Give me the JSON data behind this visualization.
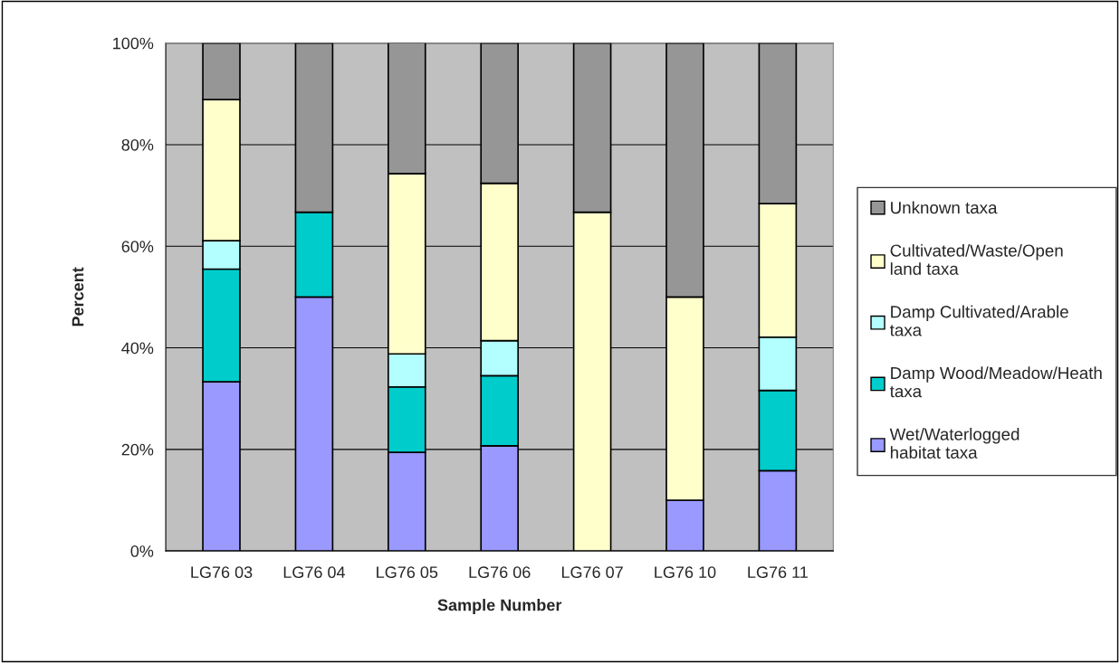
{
  "chart_data": {
    "type": "bar",
    "stacked": true,
    "xlabel": "Sample Number",
    "ylabel": "Percent",
    "categories": [
      "LG76 03",
      "LG76 04",
      "LG76 05",
      "LG76 06",
      "LG76 07",
      "LG76 10",
      "LG76 11"
    ],
    "series": [
      {
        "name": "Wet/Waterlogged habitat taxa",
        "color": "#9999ff",
        "values": [
          33.3,
          50.0,
          19.4,
          20.7,
          0,
          10.0,
          15.8
        ]
      },
      {
        "name": "Damp Wood/Meadow/Heath taxa",
        "color": "#00cccc",
        "values": [
          22.2,
          16.7,
          12.9,
          13.8,
          0,
          0,
          15.8
        ]
      },
      {
        "name": "Damp Cultivated/Arable taxa",
        "color": "#b3ffff",
        "values": [
          5.6,
          0,
          6.5,
          6.9,
          0,
          0,
          10.5
        ]
      },
      {
        "name": "Cultivated/Waste/Open land taxa",
        "color": "#ffffcc",
        "values": [
          27.8,
          0,
          35.5,
          31.0,
          66.7,
          40.0,
          26.3
        ]
      },
      {
        "name": "Unknown taxa",
        "color": "#969696",
        "values": [
          11.1,
          33.3,
          25.8,
          27.6,
          33.3,
          50.0,
          31.6
        ]
      }
    ],
    "ylim": [
      0,
      100
    ],
    "yticks": [
      {
        "value": 0,
        "label": "0%"
      },
      {
        "value": 20,
        "label": "20%"
      },
      {
        "value": 40,
        "label": "40%"
      },
      {
        "value": 60,
        "label": "60%"
      },
      {
        "value": 80,
        "label": "80%"
      },
      {
        "value": 100,
        "label": "100%"
      }
    ],
    "grid": "y",
    "legend": "right"
  }
}
